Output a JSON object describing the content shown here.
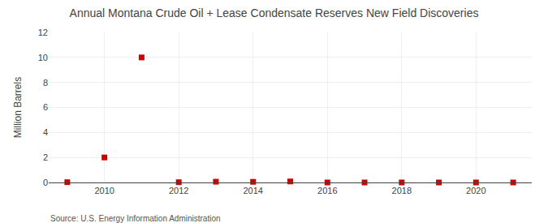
{
  "chart_data": {
    "type": "scatter",
    "title": "Annual Montana Crude Oil + Lease Condensate Reserves New Field Discoveries",
    "ylabel": "Million Barrels",
    "source": "Source: U.S. Energy Information Administration",
    "x": [
      2009,
      2010,
      2011,
      2012,
      2013,
      2014,
      2015,
      2016,
      2017,
      2018,
      2019,
      2020,
      2021
    ],
    "values": [
      0.02,
      2.0,
      10.0,
      0.02,
      0.06,
      0.05,
      0.08,
      0.0,
      0.0,
      0.0,
      0.0,
      0.0,
      0.0
    ],
    "color": "#CC0000",
    "marker": "square",
    "xlim": [
      2008.5,
      2021.5
    ],
    "ylim": [
      0,
      12
    ],
    "xticks": [
      2010,
      2012,
      2014,
      2016,
      2018,
      2020
    ],
    "yticks": [
      0,
      2,
      4,
      6,
      8,
      10,
      12
    ],
    "grid": true
  }
}
